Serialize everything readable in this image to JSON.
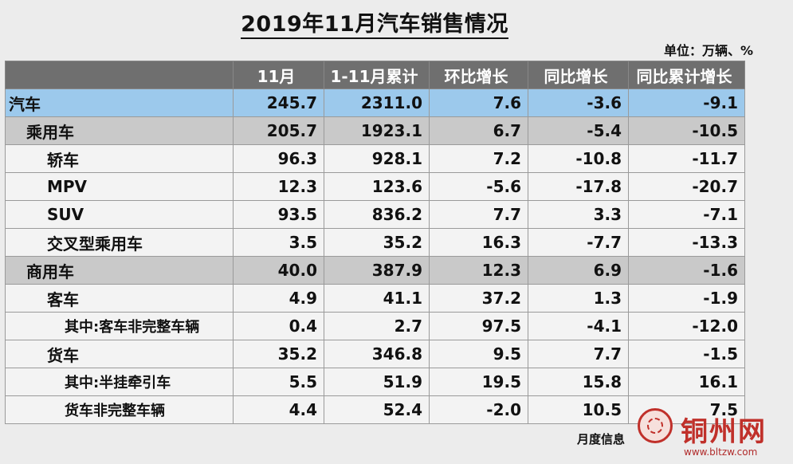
{
  "title": "2019年11月汽车销售情况",
  "unit": "单位：万辆、%",
  "columns": [
    "",
    "11月",
    "1-11月累计",
    "环比增长",
    "同比增长",
    "同比累计增长"
  ],
  "rows": [
    {
      "level": 0,
      "name": "汽车",
      "v": [
        "245.7",
        "2311.0",
        "7.6",
        "-3.6",
        "-9.1"
      ]
    },
    {
      "level": 1,
      "name": "乘用车",
      "v": [
        "205.7",
        "1923.1",
        "6.7",
        "-5.4",
        "-10.5"
      ]
    },
    {
      "level": 2,
      "name": "轿车",
      "v": [
        "96.3",
        "928.1",
        "7.2",
        "-10.8",
        "-11.7"
      ]
    },
    {
      "level": 2,
      "name": "MPV",
      "v": [
        "12.3",
        "123.6",
        "-5.6",
        "-17.8",
        "-20.7"
      ]
    },
    {
      "level": 2,
      "name": "SUV",
      "v": [
        "93.5",
        "836.2",
        "7.7",
        "3.3",
        "-7.1"
      ]
    },
    {
      "level": 2,
      "name": "交叉型乘用车",
      "v": [
        "3.5",
        "35.2",
        "16.3",
        "-7.7",
        "-13.3"
      ]
    },
    {
      "level": 1,
      "name": "商用车",
      "v": [
        "40.0",
        "387.9",
        "12.3",
        "6.9",
        "-1.6"
      ]
    },
    {
      "level": 2,
      "name": "客车",
      "v": [
        "4.9",
        "41.1",
        "37.2",
        "1.3",
        "-1.9"
      ]
    },
    {
      "level": 3,
      "name": "其中:客车非完整车辆",
      "v": [
        "0.4",
        "2.7",
        "97.5",
        "-4.1",
        "-12.0"
      ]
    },
    {
      "level": 2,
      "name": "货车",
      "v": [
        "35.2",
        "346.8",
        "9.5",
        "7.7",
        "-1.5"
      ]
    },
    {
      "level": 3,
      "name": "其中:半挂牵引车",
      "v": [
        "5.5",
        "51.9",
        "19.5",
        "15.8",
        "16.1"
      ]
    },
    {
      "level": 3,
      "name": "货车非完整车辆",
      "v": [
        "4.4",
        "52.4",
        "-2.0",
        "10.5",
        "7.5"
      ]
    }
  ],
  "footer": "月度信息",
  "watermark": {
    "text": "铜州网",
    "url": "www.bltzw.com",
    "color": "#c0302a"
  }
}
